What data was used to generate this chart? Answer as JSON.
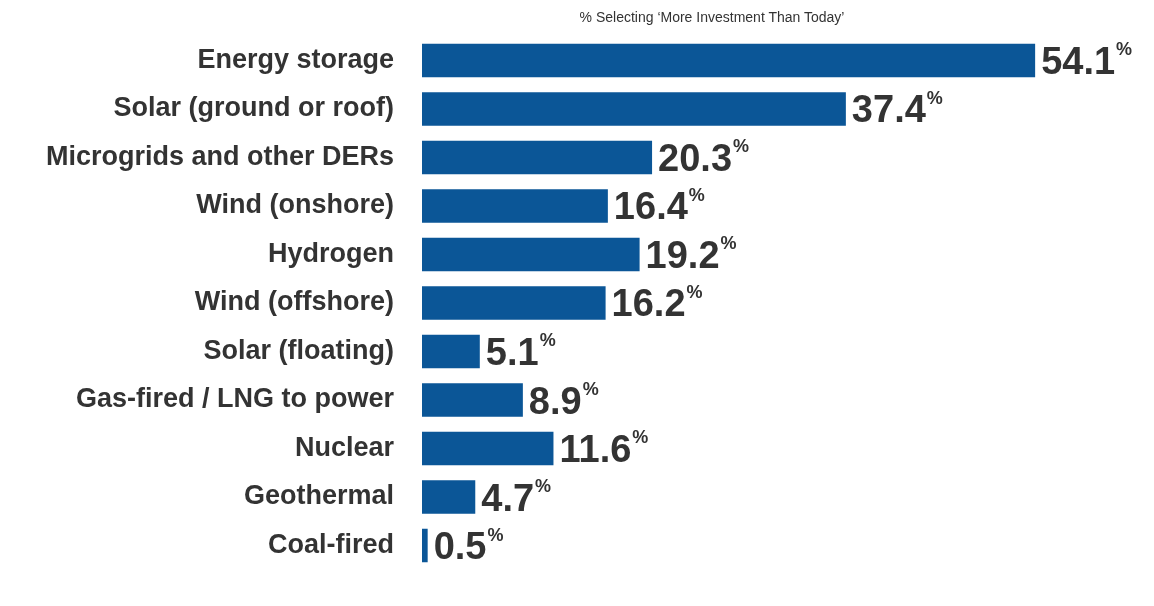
{
  "chart_data": {
    "type": "bar",
    "orientation": "horizontal",
    "title": "% Selecting ‘More Investment Than Today’",
    "categories": [
      "Energy storage",
      "Solar (ground or roof)",
      "Microgrids and other DERs",
      "Wind (onshore)",
      "Hydrogen",
      "Wind (offshore)",
      "Solar (floating)",
      "Gas-fired / LNG to power",
      "Nuclear",
      "Geothermal",
      "Coal-fired"
    ],
    "values": [
      54.1,
      37.4,
      20.3,
      16.4,
      19.2,
      16.2,
      5.1,
      8.9,
      11.6,
      4.7,
      0.5
    ],
    "value_labels": [
      "54.1%",
      "37.4%",
      "20.3%",
      "16.4%",
      "19.2%",
      "16.2%",
      "5.1%",
      "8.9%",
      "11.6%",
      "4.7%",
      "0.5%"
    ],
    "color": "#0b5697",
    "tick_labels": "y"
  }
}
